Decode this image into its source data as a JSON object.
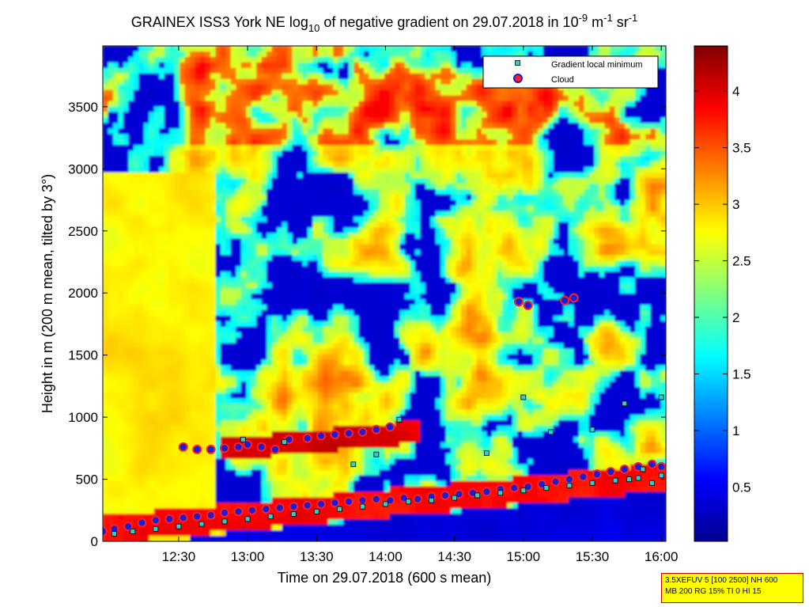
{
  "chart_data": {
    "type": "heatmap",
    "title_parts": {
      "pre": "GRAINEX ISS3 York NE log",
      "sub": "10",
      "mid": " of negative gradient on 29.07.2018 in 10",
      "sup1": "-9",
      "unit1": " m",
      "sup2": "-1",
      "unit2": " sr",
      "sup3": "-1"
    },
    "xlabel": "Time on 29.07.2018 (600 s mean)",
    "ylabel": "Height in m (200 m mean, tilted by 3°)",
    "x_ticks": [
      "12:30",
      "13:00",
      "13:30",
      "14:00",
      "14:30",
      "15:00",
      "15:30",
      "16:00"
    ],
    "x_tick_minutes": [
      750,
      780,
      810,
      840,
      870,
      900,
      930,
      960
    ],
    "xlim_minutes": [
      717,
      962
    ],
    "y_ticks": [
      "0",
      "500",
      "1000",
      "1500",
      "2000",
      "2500",
      "3000",
      "3500"
    ],
    "y_tick_values": [
      0,
      500,
      1000,
      1500,
      2000,
      2500,
      3000,
      3500
    ],
    "ylim": [
      0,
      3990
    ],
    "colorbar": {
      "ticks": [
        "0.5",
        "1",
        "1.5",
        "2",
        "2.5",
        "3",
        "3.5",
        "4"
      ],
      "tick_values": [
        0.5,
        1,
        1.5,
        2,
        2.5,
        3,
        3.5,
        4
      ],
      "range": [
        0.02,
        4.4
      ],
      "colormap": "jet"
    },
    "legend": {
      "position": "top-right",
      "entries": [
        {
          "label": "Gradient local minimum",
          "marker": "square",
          "color": "#33cccc"
        },
        {
          "label": "Cloud",
          "marker": "circle",
          "color": "#ff2020"
        }
      ]
    },
    "series": [
      {
        "name": "Cloud",
        "marker": "circle",
        "x": [
          717,
          722,
          728,
          734,
          740,
          746,
          752,
          758,
          764,
          770,
          776,
          782,
          788,
          794,
          800,
          806,
          812,
          818,
          824,
          830,
          836,
          842,
          848,
          854,
          860,
          866,
          872,
          878,
          884,
          890,
          896,
          902,
          908,
          914,
          920,
          926,
          932,
          938,
          944,
          950,
          956,
          960,
          752,
          758,
          764,
          770,
          776,
          780,
          786,
          792,
          798,
          806,
          812,
          818,
          824,
          830,
          836,
          842,
          898,
          902,
          918,
          922
        ],
        "y": [
          80,
          100,
          120,
          150,
          170,
          180,
          190,
          200,
          210,
          230,
          240,
          250,
          260,
          270,
          280,
          290,
          300,
          310,
          320,
          330,
          340,
          330,
          350,
          340,
          360,
          370,
          380,
          390,
          400,
          420,
          430,
          440,
          460,
          480,
          500,
          520,
          540,
          560,
          580,
          600,
          620,
          600,
          760,
          740,
          740,
          750,
          760,
          780,
          760,
          740,
          820,
          830,
          850,
          860,
          870,
          880,
          900,
          920,
          1930,
          1900,
          1940,
          1960
        ]
      },
      {
        "name": "Gradient local minimum",
        "marker": "square",
        "x": [
          722,
          730,
          740,
          750,
          760,
          770,
          780,
          790,
          800,
          810,
          820,
          830,
          840,
          850,
          860,
          870,
          880,
          890,
          900,
          910,
          920,
          930,
          940,
          950,
          960,
          778,
          796,
          826,
          836,
          846,
          884,
          900,
          912,
          930,
          944,
          952,
          960,
          946,
          956
        ],
        "y": [
          60,
          80,
          100,
          120,
          140,
          160,
          180,
          200,
          220,
          240,
          260,
          280,
          300,
          320,
          330,
          350,
          370,
          390,
          410,
          430,
          450,
          470,
          490,
          510,
          530,
          820,
          800,
          620,
          700,
          980,
          710,
          1160,
          880,
          900,
          1110,
          580,
          1160,
          500,
          470
        ]
      }
    ]
  },
  "info_box": {
    "line1": "3.5XEFUV 5 [100 2500] NH 600",
    "line2": "MB 200 RG 15% TI 0 HI 15"
  }
}
